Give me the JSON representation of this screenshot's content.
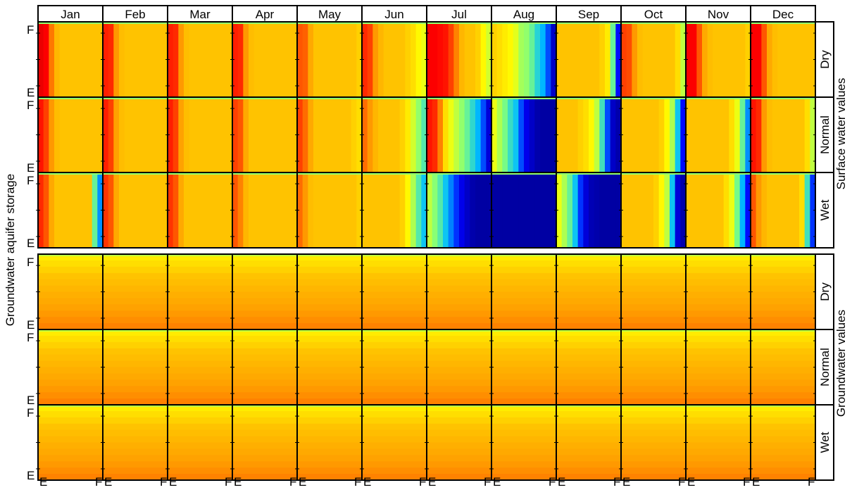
{
  "chart_data": {
    "type": "heatmap",
    "months": [
      "Jan",
      "Feb",
      "Mar",
      "Apr",
      "May",
      "Jun",
      "Jul",
      "Aug",
      "Sep",
      "Oct",
      "Nov",
      "Dec"
    ],
    "scenarios": [
      "Dry",
      "Normal",
      "Wet"
    ],
    "y_axis_label": "Groundwater aquifer storage",
    "x_tick_labels": [
      "E",
      "F"
    ],
    "y_tick_labels": [
      "F",
      "E"
    ],
    "colormap": [
      "#00007f",
      "#0000ff",
      "#00bfff",
      "#7fff7f",
      "#ffff00",
      "#ff9f00",
      "#ff0000",
      "#7f0000"
    ],
    "groups": [
      {
        "name": "Surface water values",
        "panels": [
          {
            "scenario": "Dry",
            "columns": [
              [
                0.88,
                0.86,
                0.75,
                0.68,
                0.66,
                0.66,
                0.66,
                0.66,
                0.66,
                0.66,
                0.66,
                0.66
              ],
              [
                0.83,
                0.82,
                0.72,
                0.67,
                0.66,
                0.66,
                0.66,
                0.66,
                0.66,
                0.66,
                0.66,
                0.66
              ],
              [
                0.83,
                0.82,
                0.72,
                0.67,
                0.66,
                0.66,
                0.66,
                0.66,
                0.66,
                0.66,
                0.66,
                0.66
              ],
              [
                0.83,
                0.82,
                0.72,
                0.67,
                0.66,
                0.66,
                0.66,
                0.66,
                0.66,
                0.66,
                0.66,
                0.66
              ],
              [
                0.78,
                0.77,
                0.7,
                0.66,
                0.66,
                0.66,
                0.66,
                0.66,
                0.66,
                0.66,
                0.66,
                0.64
              ],
              [
                0.82,
                0.8,
                0.72,
                0.68,
                0.66,
                0.66,
                0.66,
                0.66,
                0.64,
                0.62,
                0.58,
                0.55
              ],
              [
                0.86,
                0.86,
                0.85,
                0.84,
                0.8,
                0.74,
                0.68,
                0.66,
                0.66,
                0.64,
                0.58,
                0.52
              ],
              [
                0.64,
                0.62,
                0.6,
                0.58,
                0.54,
                0.47,
                0.45,
                0.4,
                0.33,
                0.28,
                0.2,
                0.08
              ],
              [
                0.66,
                0.66,
                0.66,
                0.66,
                0.66,
                0.66,
                0.66,
                0.66,
                0.64,
                0.6,
                0.4,
                0.15
              ],
              [
                0.8,
                0.79,
                0.72,
                0.67,
                0.66,
                0.66,
                0.66,
                0.66,
                0.66,
                0.66,
                0.62,
                0.5
              ],
              [
                0.86,
                0.86,
                0.78,
                0.7,
                0.67,
                0.66,
                0.66,
                0.66,
                0.66,
                0.66,
                0.66,
                0.64
              ],
              [
                0.86,
                0.86,
                0.78,
                0.7,
                0.67,
                0.66,
                0.66,
                0.66,
                0.66,
                0.66,
                0.66,
                0.66
              ]
            ]
          },
          {
            "scenario": "Normal",
            "columns": [
              [
                0.84,
                0.8,
                0.72,
                0.67,
                0.66,
                0.66,
                0.66,
                0.66,
                0.66,
                0.66,
                0.66,
                0.66
              ],
              [
                0.83,
                0.8,
                0.71,
                0.67,
                0.66,
                0.66,
                0.66,
                0.66,
                0.66,
                0.66,
                0.66,
                0.66
              ],
              [
                0.83,
                0.8,
                0.71,
                0.67,
                0.66,
                0.66,
                0.66,
                0.66,
                0.66,
                0.66,
                0.66,
                0.66
              ],
              [
                0.8,
                0.78,
                0.7,
                0.66,
                0.66,
                0.66,
                0.66,
                0.66,
                0.66,
                0.66,
                0.66,
                0.66
              ],
              [
                0.8,
                0.76,
                0.7,
                0.66,
                0.66,
                0.66,
                0.66,
                0.66,
                0.66,
                0.66,
                0.64,
                0.62
              ],
              [
                0.76,
                0.72,
                0.68,
                0.66,
                0.66,
                0.66,
                0.66,
                0.64,
                0.6,
                0.52,
                0.45,
                0.38
              ],
              [
                0.84,
                0.82,
                0.74,
                0.62,
                0.55,
                0.5,
                0.45,
                0.4,
                0.34,
                0.28,
                0.2,
                0.1
              ],
              [
                0.55,
                0.48,
                0.42,
                0.35,
                0.3,
                0.2,
                0.12,
                0.08,
                0.05,
                0.04,
                0.04,
                0.04
              ],
              [
                0.66,
                0.66,
                0.66,
                0.66,
                0.64,
                0.62,
                0.58,
                0.5,
                0.36,
                0.2,
                0.08,
                0.05
              ],
              [
                0.66,
                0.66,
                0.66,
                0.66,
                0.66,
                0.66,
                0.66,
                0.64,
                0.58,
                0.48,
                0.3,
                0.15
              ],
              [
                0.66,
                0.66,
                0.66,
                0.66,
                0.66,
                0.66,
                0.66,
                0.66,
                0.62,
                0.55,
                0.4,
                0.25
              ],
              [
                0.84,
                0.82,
                0.72,
                0.67,
                0.66,
                0.66,
                0.66,
                0.66,
                0.66,
                0.66,
                0.62,
                0.5
              ]
            ]
          },
          {
            "scenario": "Wet",
            "columns": [
              [
                0.82,
                0.78,
                0.7,
                0.66,
                0.66,
                0.66,
                0.66,
                0.66,
                0.66,
                0.66,
                0.4,
                0.25
              ],
              [
                0.81,
                0.78,
                0.7,
                0.66,
                0.66,
                0.66,
                0.66,
                0.66,
                0.66,
                0.66,
                0.66,
                0.66
              ],
              [
                0.81,
                0.78,
                0.7,
                0.66,
                0.66,
                0.66,
                0.66,
                0.66,
                0.66,
                0.66,
                0.66,
                0.66
              ],
              [
                0.78,
                0.74,
                0.68,
                0.66,
                0.66,
                0.66,
                0.66,
                0.66,
                0.66,
                0.66,
                0.66,
                0.66
              ],
              [
                0.76,
                0.72,
                0.67,
                0.66,
                0.66,
                0.66,
                0.66,
                0.66,
                0.66,
                0.66,
                0.66,
                0.64
              ],
              [
                0.66,
                0.66,
                0.66,
                0.66,
                0.66,
                0.66,
                0.66,
                0.64,
                0.58,
                0.48,
                0.38,
                0.3
              ],
              [
                0.5,
                0.44,
                0.38,
                0.3,
                0.24,
                0.18,
                0.12,
                0.08,
                0.05,
                0.04,
                0.04,
                0.04
              ],
              [
                0.04,
                0.04,
                0.04,
                0.04,
                0.04,
                0.04,
                0.04,
                0.04,
                0.04,
                0.04,
                0.04,
                0.04
              ],
              [
                0.55,
                0.48,
                0.4,
                0.3,
                0.18,
                0.1,
                0.06,
                0.05,
                0.04,
                0.04,
                0.04,
                0.04
              ],
              [
                0.66,
                0.66,
                0.66,
                0.66,
                0.66,
                0.66,
                0.64,
                0.58,
                0.5,
                0.3,
                0.1,
                0.05
              ],
              [
                0.66,
                0.66,
                0.66,
                0.66,
                0.66,
                0.66,
                0.66,
                0.62,
                0.55,
                0.42,
                0.28,
                0.15
              ],
              [
                0.78,
                0.72,
                0.68,
                0.66,
                0.66,
                0.66,
                0.66,
                0.66,
                0.66,
                0.62,
                0.36,
                0.18
              ]
            ]
          }
        ]
      },
      {
        "name": "Groundwater values",
        "panels": [
          {
            "scenario": "Dry",
            "rows": [
              0.6,
              0.62,
              0.64,
              0.66,
              0.67,
              0.68,
              0.69,
              0.7,
              0.71,
              0.72,
              0.73,
              0.74
            ]
          },
          {
            "scenario": "Normal",
            "rows": [
              0.6,
              0.62,
              0.64,
              0.66,
              0.67,
              0.68,
              0.69,
              0.7,
              0.71,
              0.72,
              0.73,
              0.74
            ]
          },
          {
            "scenario": "Wet",
            "rows": [
              0.6,
              0.62,
              0.64,
              0.66,
              0.67,
              0.68,
              0.69,
              0.7,
              0.71,
              0.72,
              0.73,
              0.74
            ]
          }
        ]
      }
    ]
  }
}
